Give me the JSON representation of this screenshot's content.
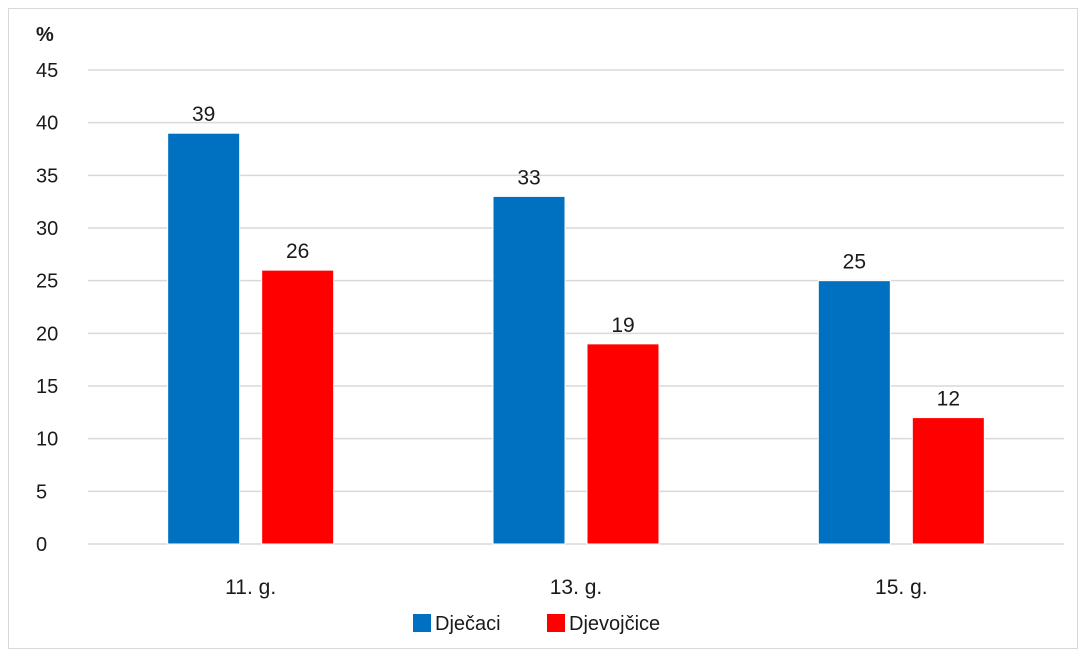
{
  "chart_data": {
    "type": "bar",
    "title": "",
    "xlabel": "",
    "ylabel": "%",
    "ylim": [
      0,
      45
    ],
    "yticks": [
      0,
      5,
      10,
      15,
      20,
      25,
      30,
      35,
      40,
      45
    ],
    "grid": true,
    "legend_position": "bottom",
    "categories": [
      "11. g.",
      "13. g.",
      "15. g."
    ],
    "series": [
      {
        "name": "Dječaci",
        "color": "#0070C0",
        "values": [
          39,
          33,
          25
        ]
      },
      {
        "name": "Djevojčice",
        "color": "#FF0000",
        "values": [
          26,
          19,
          12
        ]
      }
    ]
  }
}
